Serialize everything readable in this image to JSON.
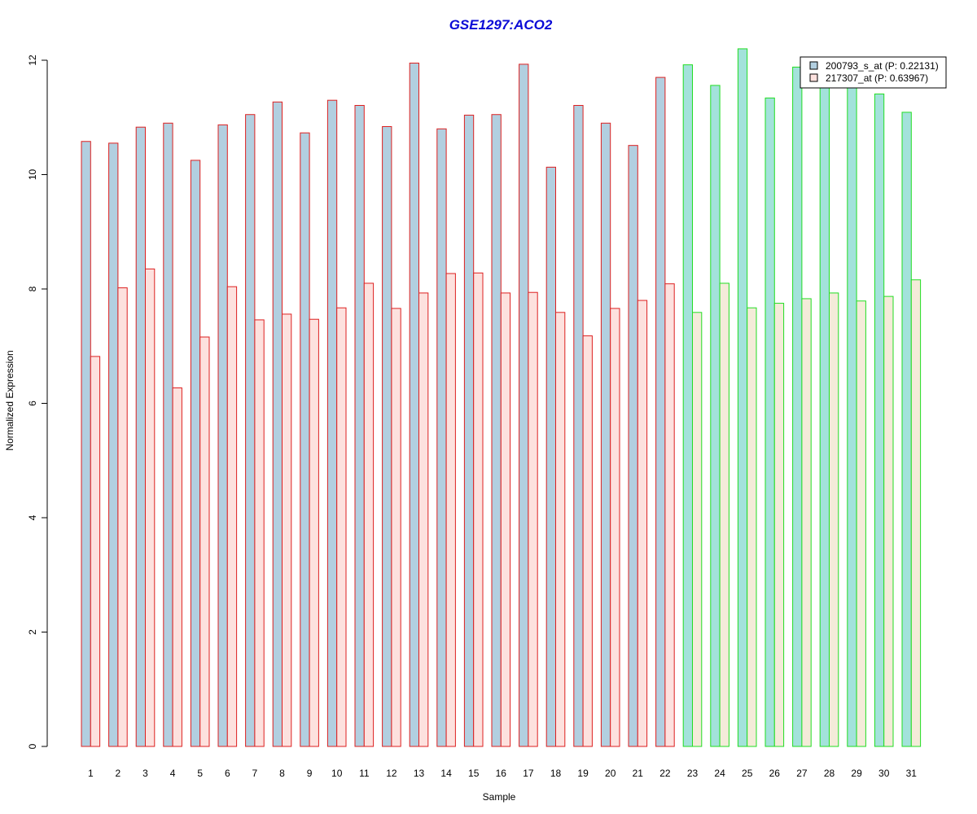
{
  "chart_data": {
    "type": "bar",
    "title": "GSE1297:ACO2",
    "xlabel": "Sample",
    "ylabel": "Normalized Expression",
    "ylim": [
      0,
      12
    ],
    "yticks": [
      0,
      2,
      4,
      6,
      8,
      10,
      12
    ],
    "grid": false,
    "legend_position": "top-right",
    "categories": [
      "1",
      "2",
      "3",
      "4",
      "5",
      "6",
      "7",
      "8",
      "9",
      "10",
      "11",
      "12",
      "13",
      "14",
      "15",
      "16",
      "17",
      "18",
      "19",
      "20",
      "21",
      "22",
      "23",
      "24",
      "25",
      "26",
      "27",
      "28",
      "29",
      "30",
      "31"
    ],
    "groups": [
      {
        "samples_from": 1,
        "samples_to": 22,
        "border_color": "#dd2020"
      },
      {
        "samples_from": 23,
        "samples_to": 31,
        "border_color": "#22dd22"
      }
    ],
    "series": [
      {
        "name": "200793_s_at (P: 0.22131)",
        "fill_group1": "#b2cfe0",
        "fill_group2": "#a3e2db",
        "values": [
          10.58,
          10.55,
          10.83,
          10.9,
          10.25,
          10.87,
          11.05,
          11.27,
          10.73,
          11.3,
          11.21,
          10.84,
          11.95,
          10.8,
          11.04,
          11.05,
          11.93,
          10.13,
          11.21,
          10.9,
          10.51,
          11.7,
          11.92,
          11.56,
          12.2,
          11.34,
          11.88,
          11.6,
          11.6,
          11.41,
          11.09
        ]
      },
      {
        "name": "217307_at (P: 0.63967)",
        "fill_group1": "#fde1de",
        "fill_group2": "#f4ebd9",
        "values": [
          6.82,
          8.02,
          8.35,
          6.27,
          7.16,
          8.04,
          7.46,
          7.56,
          7.47,
          7.67,
          8.1,
          7.66,
          7.93,
          8.27,
          8.28,
          7.93,
          7.94,
          7.59,
          7.18,
          7.66,
          7.8,
          8.09,
          7.59,
          8.1,
          7.67,
          7.75,
          7.83,
          7.93,
          7.79,
          7.87,
          8.16
        ]
      }
    ],
    "legend": {
      "border_color": "#000000",
      "swatch_fills": [
        "#b2cfe0",
        "#fde1de"
      ]
    },
    "colors": {
      "title": "#0a0ad6",
      "axis": "#000000"
    }
  }
}
